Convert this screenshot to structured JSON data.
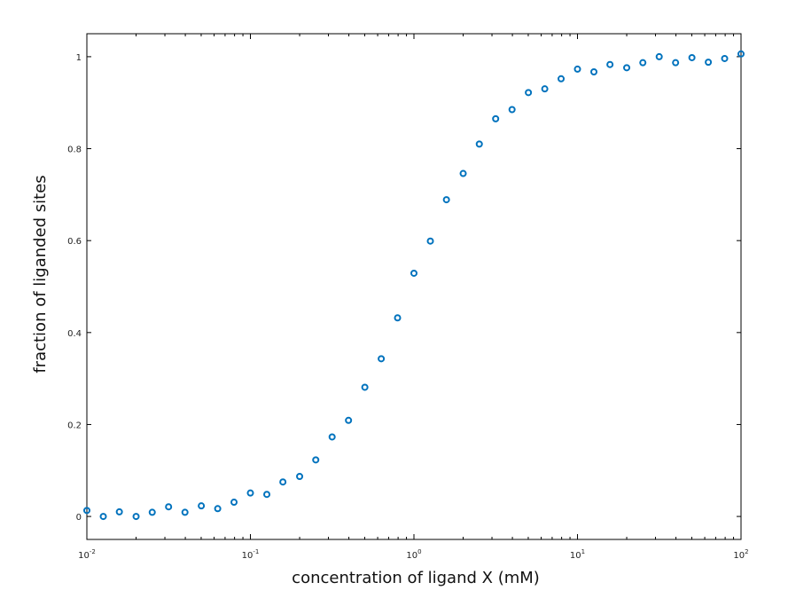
{
  "chart_data": {
    "type": "scatter",
    "title": "",
    "xlabel": "concentration of ligand X (mM)",
    "ylabel": "fraction of liganded sites",
    "xscale": "log",
    "xlim": [
      0.01,
      100
    ],
    "ylim": [
      -0.05,
      1.05
    ],
    "grid": false,
    "x_ticks": [
      {
        "base": "10",
        "exp": "-2",
        "value": 0.01
      },
      {
        "base": "10",
        "exp": "-1",
        "value": 0.1
      },
      {
        "base": "10",
        "exp": "0",
        "value": 1
      },
      {
        "base": "10",
        "exp": "1",
        "value": 10
      },
      {
        "base": "10",
        "exp": "2",
        "value": 100
      }
    ],
    "y_ticks": [
      {
        "label": "0",
        "value": 0
      },
      {
        "label": "0.2",
        "value": 0.2
      },
      {
        "label": "0.4",
        "value": 0.4
      },
      {
        "label": "0.6",
        "value": 0.6
      },
      {
        "label": "0.8",
        "value": 0.8
      },
      {
        "label": "1",
        "value": 1
      }
    ],
    "marker_color": "#0072bd",
    "series": [
      {
        "x": [
          0.01,
          0.0126,
          0.0158,
          0.02,
          0.0251,
          0.0316,
          0.0398,
          0.0501,
          0.0631,
          0.0794,
          0.1,
          0.126,
          0.158,
          0.2,
          0.251,
          0.316,
          0.398,
          0.501,
          0.631,
          0.794,
          1,
          1.26,
          1.58,
          2,
          2.51,
          3.16,
          3.98,
          5.01,
          6.31,
          7.94,
          10,
          12.6,
          15.8,
          20,
          25.1,
          31.6,
          39.8,
          50.1,
          63.1,
          79.4,
          100
        ],
        "y": [
          0.013,
          0.0,
          0.01,
          0.0,
          0.009,
          0.021,
          0.009,
          0.023,
          0.017,
          0.031,
          0.051,
          0.048,
          0.075,
          0.087,
          0.123,
          0.173,
          0.209,
          0.281,
          0.343,
          0.432,
          0.529,
          0.599,
          0.689,
          0.746,
          0.81,
          0.865,
          0.885,
          0.922,
          0.93,
          0.952,
          0.973,
          0.967,
          0.983,
          0.976,
          0.987,
          1.0,
          0.987,
          0.998,
          0.988,
          0.996,
          1.006
        ]
      }
    ]
  }
}
